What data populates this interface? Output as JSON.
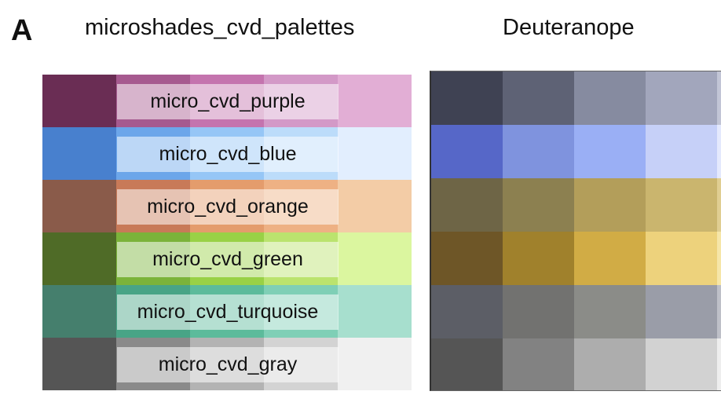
{
  "panel_letter": "A",
  "left_title": "microshades_cvd_palettes",
  "right_title": "Deuteranope",
  "palettes": [
    {
      "label": "micro_cvd_purple",
      "colors": [
        "#6A2D54",
        "#A65A8F",
        "#C474AE",
        "#D399C7",
        "#E2AED5"
      ]
    },
    {
      "label": "micro_cvd_blue",
      "colors": [
        "#4880CE",
        "#6CA6EA",
        "#96C6F6",
        "#BCDCFA",
        "#E2EEFE"
      ]
    },
    {
      "label": "micro_cvd_orange",
      "colors": [
        "#8A5B4A",
        "#C87A58",
        "#E49C6C",
        "#EEB184",
        "#F3CCA6"
      ]
    },
    {
      "label": "micro_cvd_green",
      "colors": [
        "#4F6B27",
        "#7BB33A",
        "#99D146",
        "#BBE36E",
        "#DBF69F"
      ]
    },
    {
      "label": "micro_cvd_turquoise",
      "colors": [
        "#457F6D",
        "#48A486",
        "#5CBB9B",
        "#7FCFB6",
        "#A7DFCE"
      ]
    },
    {
      "label": "micro_cvd_gray",
      "colors": [
        "#555555",
        "#8A8A8A",
        "#B3B3B3",
        "#D3D3D3",
        "#F0F0F0"
      ]
    }
  ],
  "deuteranope": [
    [
      "#3F4253",
      "#5E6275",
      "#868BA0",
      "#A2A6BC",
      "#C2C5D6"
    ],
    [
      "#5667C8",
      "#7F93DE",
      "#9AAFF5",
      "#C6D0F8",
      "#E4E9FD"
    ],
    [
      "#6E6546",
      "#8C8050",
      "#B39E5A",
      "#CAB56E",
      "#E0CE92"
    ],
    [
      "#6E5627",
      "#A0812C",
      "#D1AC45",
      "#EDD27C",
      "#F6E6A8"
    ],
    [
      "#5C5E66",
      "#727270",
      "#8B8C88",
      "#9A9DA8",
      "#BEC0C8"
    ],
    [
      "#555555",
      "#828282",
      "#ADADAD",
      "#D2D2D2",
      "#EEEEEE"
    ]
  ]
}
